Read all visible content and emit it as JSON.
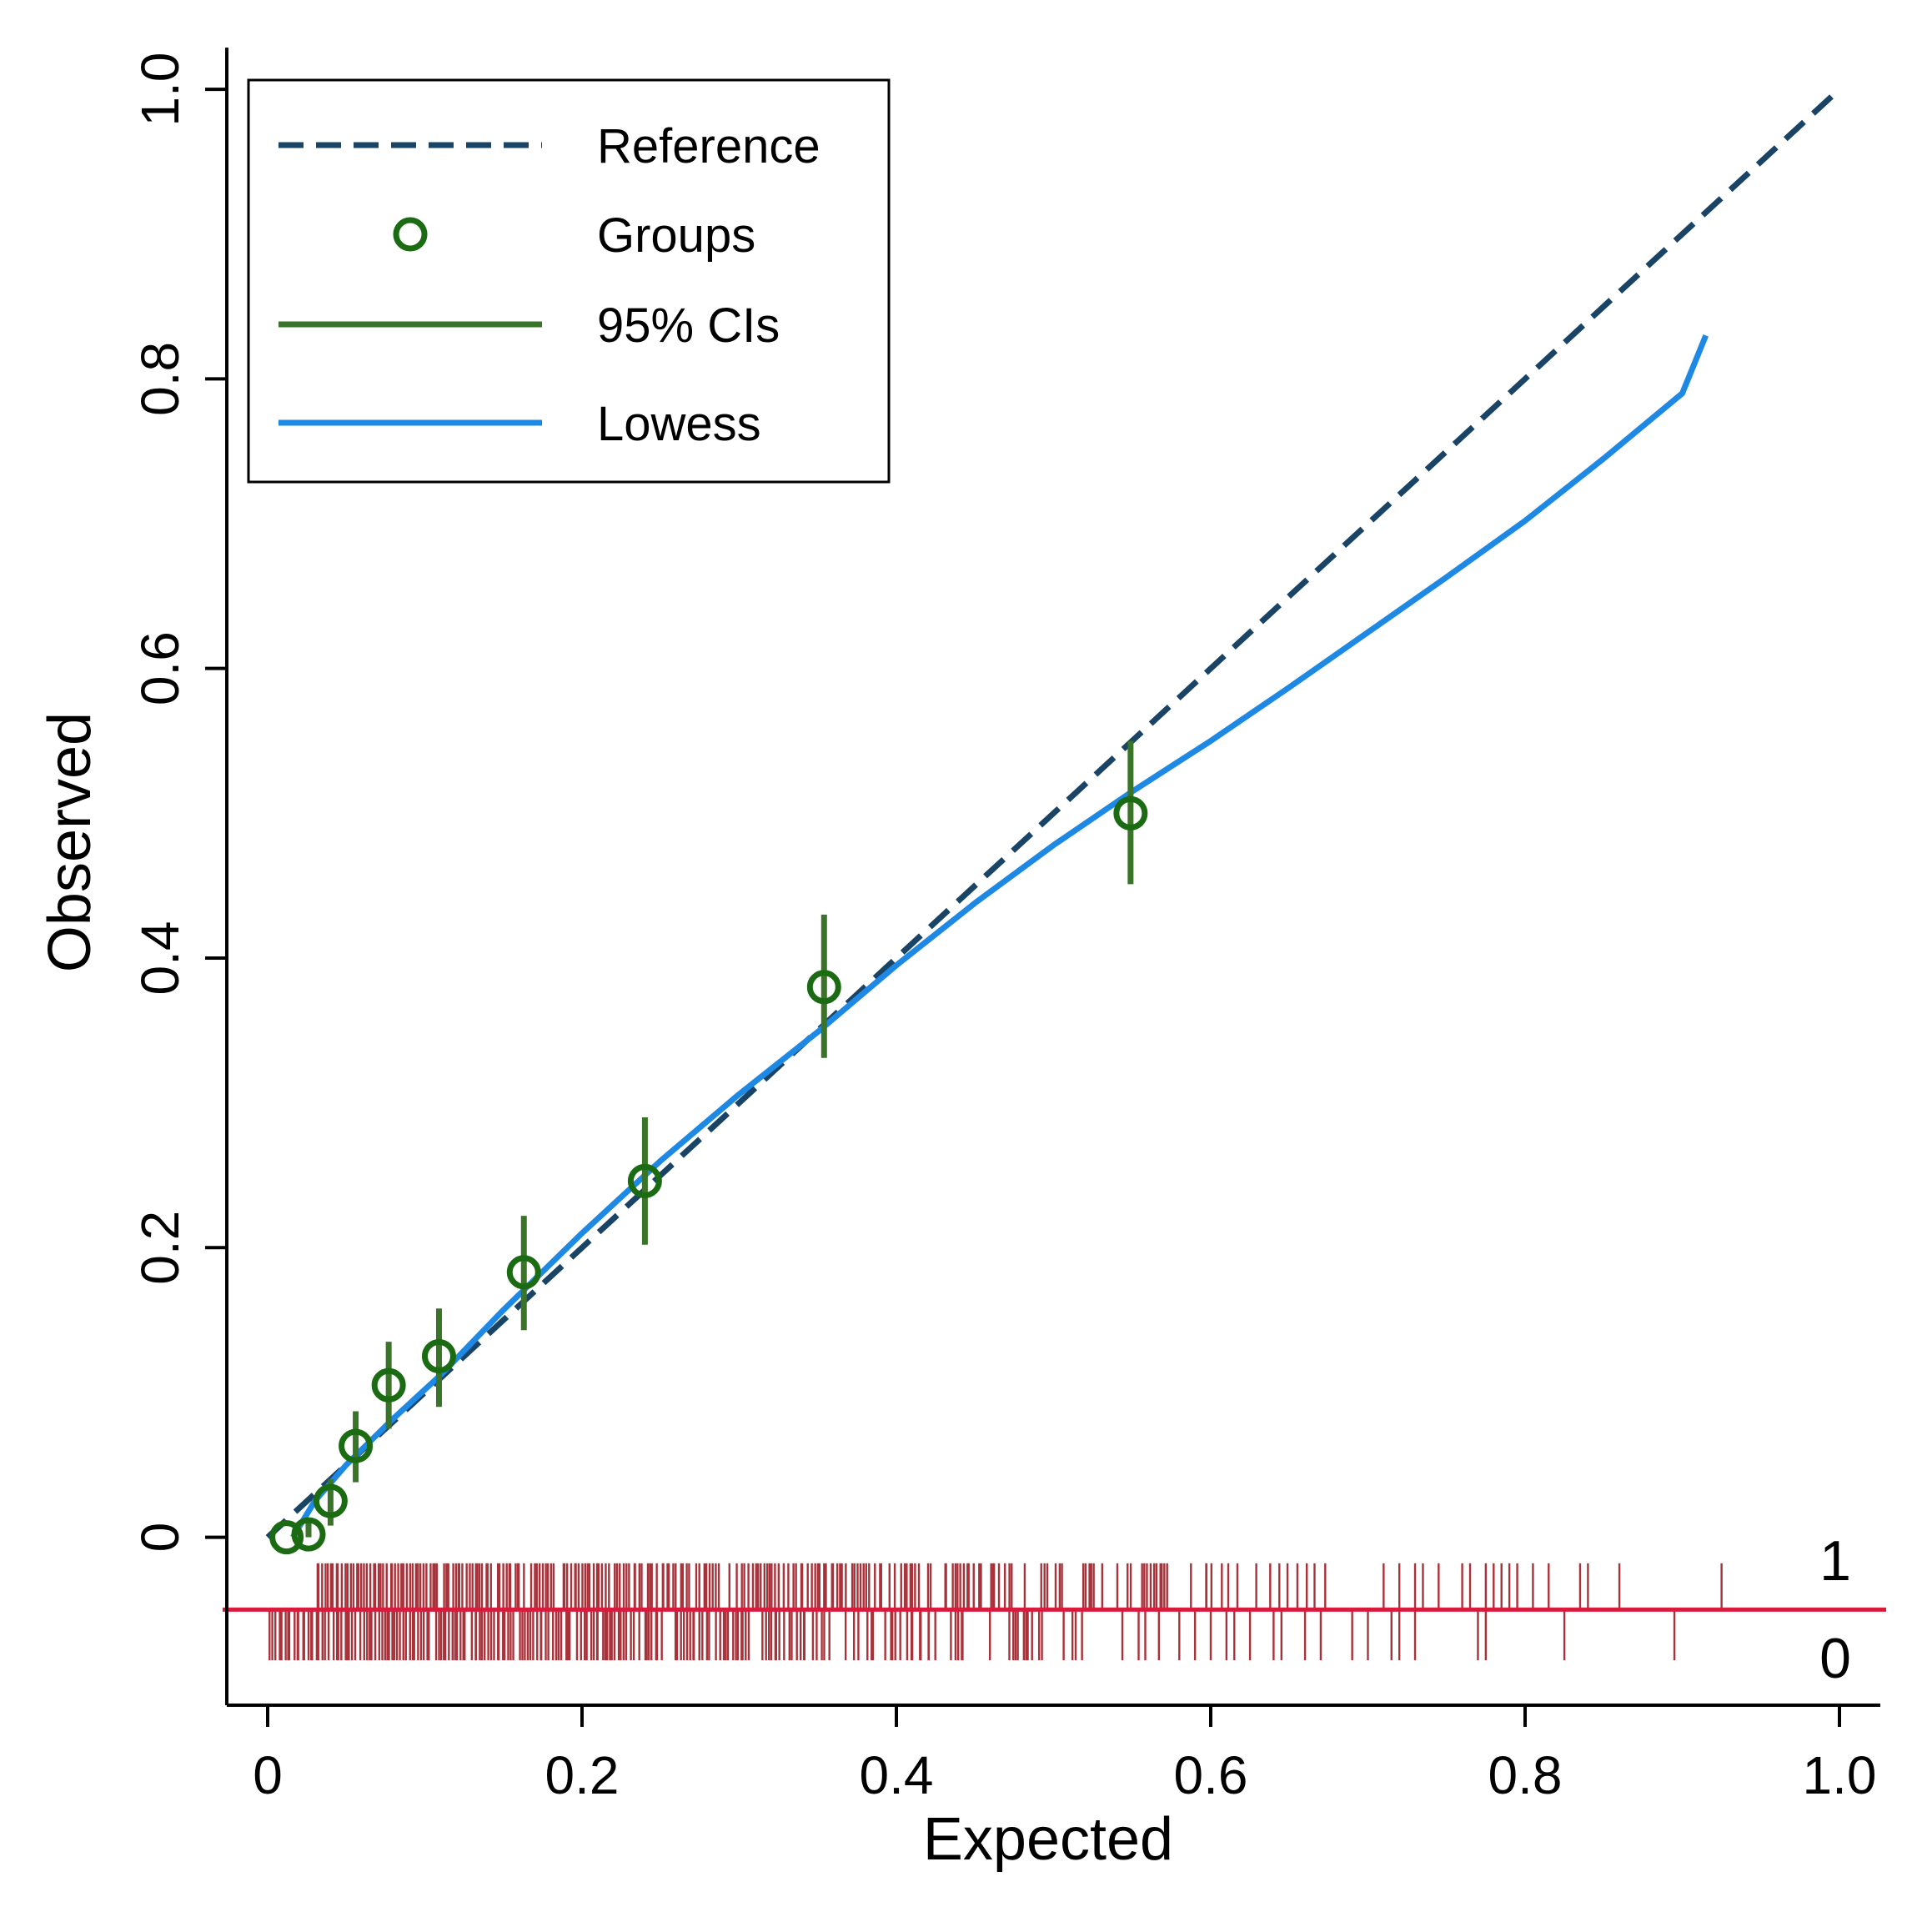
{
  "chart_data": {
    "type": "scatter",
    "title": "",
    "xlabel": "Expected",
    "ylabel": "Observed",
    "xlim": [
      -0.026,
      1.026
    ],
    "ylim": [
      -0.116,
      1.03
    ],
    "x_ticks": [
      0,
      0.2,
      0.4,
      0.6,
      0.8,
      1.0
    ],
    "x_tick_labels": [
      "0",
      "0.2",
      "0.4",
      "0.6",
      "0.8",
      "1.0"
    ],
    "y_ticks": [
      0,
      0.2,
      0.4,
      0.6,
      0.8,
      1.0
    ],
    "y_tick_labels": [
      "0",
      "0.2",
      "0.4",
      "0.6",
      "0.8",
      "1.0"
    ],
    "grid": false,
    "legend_position": "top-left",
    "legend": {
      "reference": "Reference",
      "groups": "Groups",
      "cis": "95% CIs",
      "lowess": "Lowess"
    },
    "colors": {
      "reference": "#1a4466",
      "groups": "#1a6b12",
      "cis": "#3a7428",
      "lowess": "#1e88e5",
      "rug": "#a8323a",
      "baseline": "#d81b3c"
    },
    "reference": {
      "x": [
        0,
        1
      ],
      "y": [
        0,
        1
      ]
    },
    "groups": {
      "x": [
        0.012,
        0.026,
        0.04,
        0.056,
        0.077,
        0.109,
        0.163,
        0.24,
        0.354,
        0.549
      ],
      "y": [
        0.0,
        0.002,
        0.025,
        0.063,
        0.105,
        0.125,
        0.183,
        0.246,
        0.38,
        0.5
      ],
      "ci_low": [
        0.0,
        0.0,
        0.008,
        0.038,
        0.075,
        0.09,
        0.143,
        0.202,
        0.331,
        0.451
      ],
      "ci_high": [
        0.0,
        0.01,
        0.04,
        0.087,
        0.135,
        0.158,
        0.222,
        0.29,
        0.43,
        0.55
      ]
    },
    "lowess": {
      "x": [
        0.016,
        0.03,
        0.05,
        0.08,
        0.11,
        0.15,
        0.2,
        0.25,
        0.3,
        0.35,
        0.4,
        0.45,
        0.5,
        0.55,
        0.6,
        0.65,
        0.7,
        0.75,
        0.8,
        0.85,
        0.9,
        0.915
      ],
      "y": [
        0.0,
        0.025,
        0.05,
        0.082,
        0.112,
        0.157,
        0.21,
        0.26,
        0.306,
        0.349,
        0.395,
        0.438,
        0.478,
        0.515,
        0.55,
        0.587,
        0.625,
        0.663,
        0.702,
        0.745,
        0.79,
        0.83
      ]
    },
    "rug": {
      "outcome_labels": [
        "1",
        "0"
      ],
      "baseline_y": -0.05,
      "events_y": [
        -0.018,
        -0.05
      ],
      "nonevents_y": [
        -0.05,
        -0.085
      ],
      "events_dense_range": [
        0.031,
        0.7
      ],
      "events_sparse_x": [
        0.71,
        0.72,
        0.73,
        0.735,
        0.745,
        0.76,
        0.765,
        0.775,
        0.78,
        0.785,
        0.79,
        0.795,
        0.805,
        0.815,
        0.835,
        0.84,
        0.86,
        0.925
      ],
      "nonevents_dense_range": [
        0.002,
        0.57
      ],
      "nonevents_sparse_x": [
        0.58,
        0.59,
        0.6,
        0.61,
        0.615,
        0.625,
        0.64,
        0.645,
        0.66,
        0.67,
        0.69,
        0.7,
        0.715,
        0.72,
        0.73,
        0.77,
        0.775,
        0.825,
        0.895
      ]
    }
  }
}
